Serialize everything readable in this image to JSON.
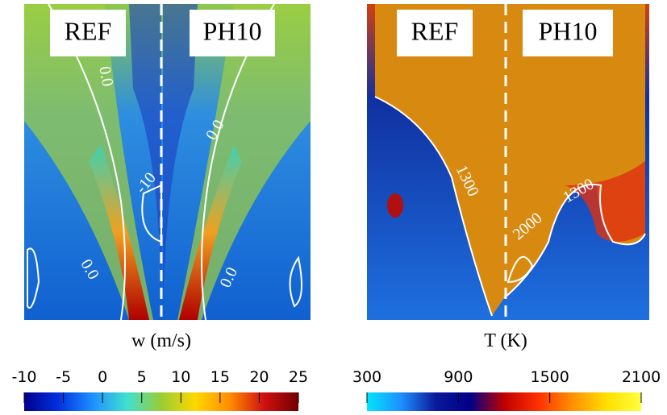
{
  "panels": [
    {
      "left_label": "REF",
      "right_label": "PH10",
      "contour_labels": [
        "0.0",
        "0.0",
        "-10",
        "0.0",
        "0.0"
      ],
      "colorbar": {
        "title": "w (m/s)",
        "lim": [
          -10,
          25
        ],
        "ticks": [
          -10,
          -5,
          0,
          5,
          10,
          15,
          20,
          25
        ],
        "colors": [
          "#00008b",
          "#0030e0",
          "#1e90ff",
          "#40e0d0",
          "#9acd32",
          "#ffd700",
          "#ff8c00",
          "#d01010",
          "#700000"
        ]
      }
    },
    {
      "left_label": "REF",
      "right_label": "PH10",
      "contour_labels": [
        "1300",
        "1300",
        "2000"
      ],
      "colorbar": {
        "title": "T (K)",
        "lim": [
          300,
          2100
        ],
        "ticks": [
          300,
          900,
          1500,
          2100
        ],
        "colors": [
          "#00e5ff",
          "#1e8fff",
          "#0a1a9a",
          "#00008b",
          "#c00000",
          "#ff3000",
          "#ff9000",
          "#ffe000",
          "#ffff40"
        ]
      }
    }
  ]
}
